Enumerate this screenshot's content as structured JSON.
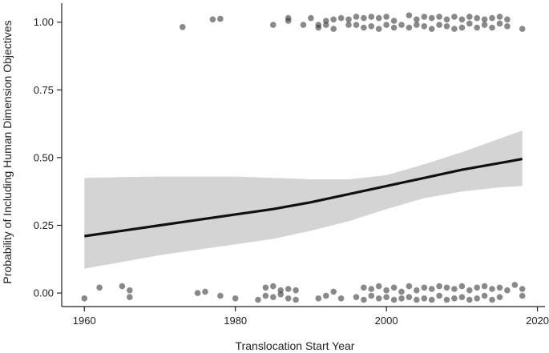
{
  "chart_data": {
    "type": "scatter",
    "xlabel": "Translocation Start Year",
    "ylabel": "Probability of Including Human Dimension Objectives",
    "xlim": [
      1957,
      2021
    ],
    "ylim": [
      -0.05,
      1.07
    ],
    "xticks": [
      1960,
      1980,
      2000,
      2020
    ],
    "yticks": [
      0.0,
      0.25,
      0.5,
      0.75,
      1.0
    ],
    "ytick_labels": [
      "0.00",
      "0.25",
      "0.50",
      "0.75",
      "1.00"
    ],
    "grid": false,
    "legend": "none",
    "colors": {
      "points": "#3a3a3a",
      "line": "#111111",
      "band": "#d4d4d4"
    },
    "fit": {
      "x": [
        1960,
        1965,
        1970,
        1975,
        1980,
        1985,
        1990,
        1995,
        2000,
        2005,
        2010,
        2015,
        2018
      ],
      "y": [
        0.21,
        0.23,
        0.25,
        0.27,
        0.29,
        0.31,
        0.335,
        0.365,
        0.395,
        0.425,
        0.455,
        0.48,
        0.495
      ],
      "lower": [
        0.09,
        0.115,
        0.14,
        0.16,
        0.18,
        0.2,
        0.23,
        0.265,
        0.31,
        0.35,
        0.375,
        0.39,
        0.395
      ],
      "upper": [
        0.425,
        0.428,
        0.43,
        0.43,
        0.43,
        0.425,
        0.42,
        0.42,
        0.435,
        0.475,
        0.52,
        0.57,
        0.6
      ]
    },
    "points_y1": {
      "x": [
        1973,
        1977,
        1978,
        1985,
        1987,
        1987,
        1989,
        1990,
        1991,
        1991,
        1992,
        1992,
        1993,
        1993,
        1994,
        1995,
        1995,
        1996,
        1996,
        1997,
        1997,
        1998,
        1998,
        1999,
        1999,
        2000,
        2000,
        2001,
        2001,
        2002,
        2003,
        2003,
        2004,
        2004,
        2005,
        2005,
        2006,
        2006,
        2007,
        2007,
        2008,
        2008,
        2009,
        2009,
        2010,
        2010,
        2011,
        2011,
        2012,
        2012,
        2013,
        2013,
        2014,
        2014,
        2015,
        2015,
        2016,
        2016,
        2018
      ],
      "y": [
        0.982,
        1.01,
        1.012,
        0.99,
        1.015,
        1.005,
        0.99,
        1.015,
        0.99,
        0.98,
        1.005,
        0.99,
        1.01,
        0.975,
        1.015,
        1.01,
        0.99,
        1.02,
        0.99,
        1.015,
        0.98,
        1.02,
        0.985,
        1.015,
        0.975,
        1.02,
        0.99,
        1.005,
        0.98,
        0.99,
        1.025,
        0.98,
        1.01,
        0.99,
        1.02,
        0.985,
        1.015,
        0.975,
        1.02,
        0.99,
        1.01,
        0.985,
        1.02,
        0.975,
        1.01,
        0.98,
        1.02,
        0.995,
        1.015,
        0.98,
        1.01,
        0.99,
        1.015,
        0.98,
        1.02,
        0.995,
        1.01,
        0.985,
        0.975
      ]
    },
    "points_y0": {
      "x": [
        1960,
        1962,
        1965,
        1966,
        1966,
        1975,
        1976,
        1978,
        1980,
        1983,
        1984,
        1984,
        1985,
        1985,
        1986,
        1986,
        1987,
        1987,
        1988,
        1988,
        1991,
        1992,
        1993,
        1994,
        1996,
        1997,
        1997,
        1998,
        1998,
        1999,
        1999,
        2000,
        2000,
        2001,
        2001,
        2002,
        2002,
        2003,
        2003,
        2004,
        2004,
        2005,
        2005,
        2006,
        2006,
        2007,
        2007,
        2008,
        2008,
        2009,
        2009,
        2010,
        2010,
        2011,
        2011,
        2012,
        2012,
        2013,
        2013,
        2014,
        2014,
        2015,
        2015,
        2016,
        2017,
        2018,
        2018
      ],
      "y": [
        -0.02,
        0.02,
        0.025,
        0.01,
        -0.015,
        0.0,
        0.005,
        -0.01,
        -0.02,
        -0.025,
        -0.01,
        0.02,
        0.025,
        -0.015,
        0.01,
        -0.005,
        0.015,
        -0.02,
        0.01,
        -0.025,
        -0.02,
        -0.01,
        0.005,
        -0.02,
        -0.015,
        0.02,
        -0.025,
        0.015,
        -0.01,
        0.025,
        -0.02,
        0.01,
        -0.015,
        0.02,
        -0.025,
        0.005,
        -0.02,
        0.025,
        -0.015,
        0.01,
        -0.025,
        0.02,
        -0.02,
        0.015,
        -0.025,
        0.025,
        -0.01,
        0.02,
        -0.025,
        0.015,
        -0.02,
        0.025,
        -0.015,
        0.01,
        -0.025,
        0.02,
        -0.02,
        0.025,
        -0.01,
        0.015,
        -0.025,
        0.02,
        -0.015,
        0.01,
        0.03,
        0.015,
        -0.01
      ]
    }
  }
}
